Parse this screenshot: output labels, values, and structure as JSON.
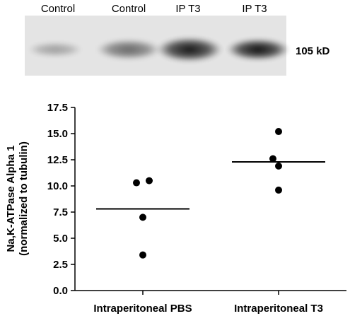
{
  "blot": {
    "lane_labels": [
      "Control",
      "Control",
      "IP T3",
      "IP T3"
    ],
    "band_label": "105 kD"
  },
  "chart_data": {
    "type": "scatter",
    "title": "",
    "xlabel": "",
    "ylabel_line1": "Na,K-ATPase Alpha 1",
    "ylabel_line2": "(normalized to tubulin)",
    "ylim": [
      0.0,
      17.5
    ],
    "yticks": [
      "0.0",
      "2.5",
      "5.0",
      "7.5",
      "10.0",
      "12.5",
      "15.0",
      "17.5"
    ],
    "grid": false,
    "categories": [
      "Intraperitoneal PBS",
      "Intraperitoneal T3"
    ],
    "series": [
      {
        "points": [
          {
            "x": -0.09,
            "y": 10.3
          },
          {
            "x": 0.09,
            "y": 10.5
          },
          {
            "x": 0.0,
            "y": 7.0
          },
          {
            "x": 0.0,
            "y": 3.4
          }
        ],
        "mean": 7.8
      },
      {
        "points": [
          {
            "x": 0.0,
            "y": 15.2
          },
          {
            "x": -0.08,
            "y": 12.6
          },
          {
            "x": 0.0,
            "y": 11.9
          },
          {
            "x": 0.0,
            "y": 9.6
          }
        ],
        "mean": 12.3
      }
    ]
  }
}
